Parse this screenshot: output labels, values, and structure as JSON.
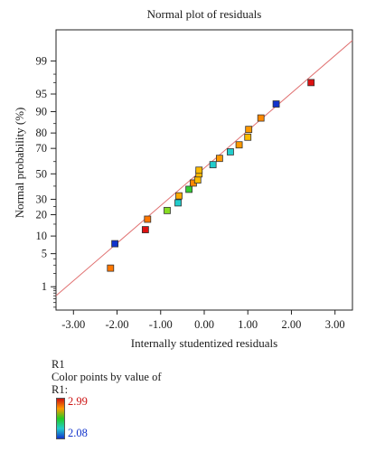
{
  "chart_data": {
    "type": "scatter",
    "title": "Normal plot of residuals",
    "xlabel": "Internally studentized residuals",
    "ylabel": "Normal probability (%)",
    "xlim": [
      -3.4,
      3.4
    ],
    "xticks": [
      -3.0,
      -2.0,
      -1.0,
      0.0,
      1.0,
      2.0,
      3.0
    ],
    "xtick_labels": [
      "-3.00",
      "-2.00",
      "-1.00",
      "0.00",
      "1.00",
      "2.00",
      "3.00"
    ],
    "yscale": "normal-probability",
    "ylim_percent": [
      0.25,
      99.85
    ],
    "yticks": [
      1,
      5,
      10,
      20,
      30,
      50,
      70,
      80,
      90,
      95,
      99
    ],
    "ytick_labels": [
      "1",
      "5",
      "10",
      "20",
      "30",
      "50",
      "70",
      "80",
      "90",
      "95",
      "99"
    ],
    "reference_line": {
      "x": [
        -3.4,
        3.4
      ],
      "y": [
        0.6,
        99.7
      ],
      "color": "#e07070"
    },
    "points": [
      {
        "x": -2.15,
        "y": 2.6,
        "color": "#ff7700"
      },
      {
        "x": -2.05,
        "y": 7.5,
        "color": "#1133cc"
      },
      {
        "x": -1.35,
        "y": 12.5,
        "color": "#dd1111"
      },
      {
        "x": -1.3,
        "y": 17.5,
        "color": "#ff7700"
      },
      {
        "x": -0.85,
        "y": 22.5,
        "color": "#88dd22"
      },
      {
        "x": -0.6,
        "y": 27.5,
        "color": "#22cccc"
      },
      {
        "x": -0.58,
        "y": 32.5,
        "color": "#ffaa00"
      },
      {
        "x": -0.35,
        "y": 37.5,
        "color": "#33cc33"
      },
      {
        "x": -0.25,
        "y": 42.5,
        "color": "#ff8800"
      },
      {
        "x": -0.15,
        "y": 45.0,
        "color": "#ffbb00"
      },
      {
        "x": -0.12,
        "y": 50.0,
        "color": "#ffbb00"
      },
      {
        "x": -0.12,
        "y": 53.0,
        "color": "#ffbb00"
      },
      {
        "x": 0.2,
        "y": 57.5,
        "color": "#22cccc"
      },
      {
        "x": 0.35,
        "y": 62.5,
        "color": "#ff9900"
      },
      {
        "x": 0.6,
        "y": 67.5,
        "color": "#22cccc"
      },
      {
        "x": 0.8,
        "y": 72.5,
        "color": "#ff9900"
      },
      {
        "x": 1.0,
        "y": 77.5,
        "color": "#ffbb00"
      },
      {
        "x": 1.02,
        "y": 82.0,
        "color": "#ff9900"
      },
      {
        "x": 1.3,
        "y": 87.5,
        "color": "#ff8800"
      },
      {
        "x": 1.65,
        "y": 92.5,
        "color": "#1133cc"
      },
      {
        "x": 2.45,
        "y": 97.0,
        "color": "#dd1111"
      }
    ],
    "legend": {
      "title": "R1",
      "subtitle": "Color points by value of",
      "variable": "R1:",
      "max": "2.99",
      "min": "2.08",
      "max_color": "#cc1111",
      "min_color": "#1133cc"
    }
  }
}
